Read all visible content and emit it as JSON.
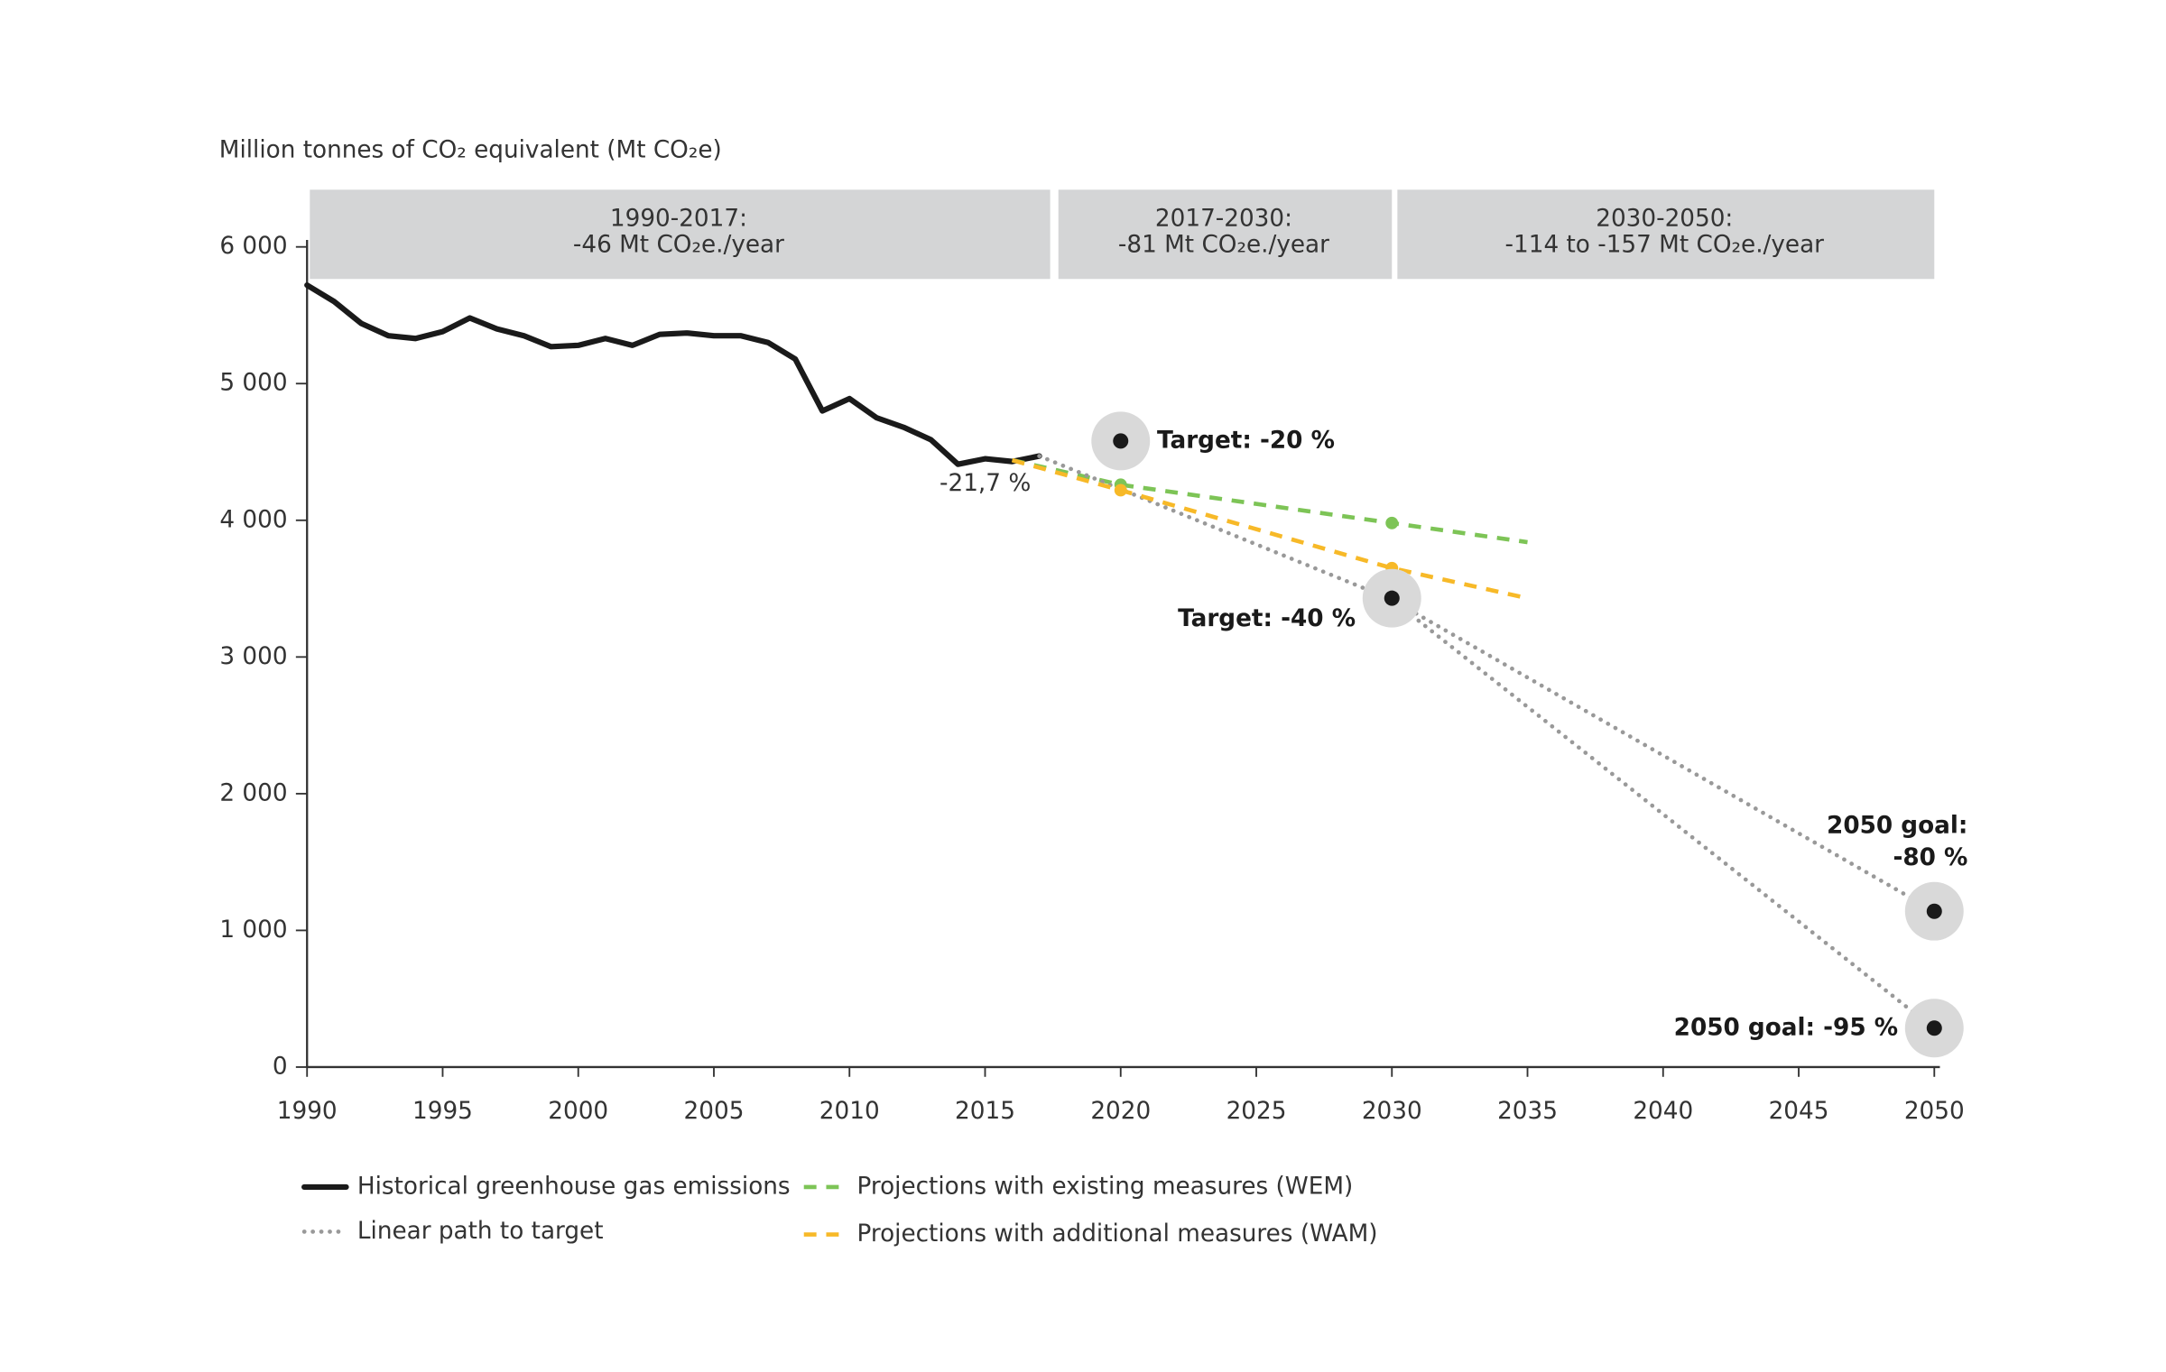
{
  "chart_data": {
    "type": "line",
    "y_axis_label": "Million tonnes of CO₂ equivalent (Mt CO₂e)",
    "xlim": [
      1990,
      2050
    ],
    "xticks": [
      1990,
      1995,
      2000,
      2005,
      2010,
      2015,
      2020,
      2025,
      2030,
      2035,
      2040,
      2045,
      2050
    ],
    "ylim": [
      0,
      6000
    ],
    "yticks": [
      0,
      {
        "value": 1000,
        "label": "1 000"
      },
      {
        "value": 2000,
        "label": "2 000"
      },
      {
        "value": 3000,
        "label": "3 000"
      },
      {
        "value": 4000,
        "label": "4 000"
      },
      {
        "value": 5000,
        "label": "5 000"
      },
      {
        "value": 6000,
        "label": "6 000"
      }
    ],
    "periods": [
      {
        "label": "1990-2017:",
        "rate": "-46 Mt CO₂e./year",
        "from": 1990,
        "to": 2017.4
      },
      {
        "label": "2017-2030:",
        "rate": "-81 Mt CO₂e./year",
        "from": 2017.6,
        "to": 2030
      },
      {
        "label": "2030-2050:",
        "rate": "-114 to -157 Mt CO₂e./year",
        "from": 2030.1,
        "to": 2050
      }
    ],
    "series": [
      {
        "name": "Historical greenhouse gas emissions",
        "color": "#1a1a1a",
        "style": "solid",
        "x": [
          1990,
          1991,
          1992,
          1993,
          1994,
          1995,
          1996,
          1997,
          1998,
          1999,
          2000,
          2001,
          2002,
          2003,
          2004,
          2005,
          2006,
          2007,
          2008,
          2009,
          2010,
          2011,
          2012,
          2013,
          2014,
          2015,
          2016,
          2017
        ],
        "values": [
          5720,
          5600,
          5440,
          5350,
          5330,
          5380,
          5480,
          5400,
          5350,
          5270,
          5280,
          5330,
          5280,
          5360,
          5370,
          5350,
          5350,
          5300,
          5180,
          4800,
          4890,
          4750,
          4680,
          4590,
          4410,
          4450,
          4430,
          4470
        ],
        "end_label": "-21,7 %"
      },
      {
        "name": "Projections with existing measures (WEM)",
        "color": "#7dc456",
        "style": "dash",
        "markers": true,
        "x": [
          2016,
          2020,
          2030,
          2035
        ],
        "values": [
          4440,
          4260,
          3980,
          3840
        ]
      },
      {
        "name": "Linear path to target",
        "color": "#999999",
        "style": "dot",
        "x": [
          2017,
          2030,
          2050
        ],
        "values": [
          4470,
          3420,
          1140
        ]
      },
      {
        "name": "Projections with additional measures (WAM)",
        "color": "#f7b928",
        "style": "dash",
        "markers": true,
        "x": [
          2016,
          2020,
          2030,
          2035
        ],
        "values": [
          4440,
          4220,
          3650,
          3430
        ]
      },
      {
        "color": "#999999",
        "style": "dot",
        "x": [
          2030,
          2050
        ],
        "values": [
          3420,
          280
        ]
      }
    ],
    "targets": [
      {
        "label": "Target: -20 %",
        "x": 2020,
        "value": 4580,
        "side": "right"
      },
      {
        "label": "Target: -40 %",
        "x": 2030,
        "value": 3430,
        "side": "left-below"
      },
      {
        "label": [
          "2050 goal:",
          "-80 %"
        ],
        "x": 2050,
        "value": 1140,
        "side": "above"
      },
      {
        "label": "2050 goal: -95 %",
        "x": 2050,
        "value": 285,
        "side": "left"
      }
    ]
  }
}
